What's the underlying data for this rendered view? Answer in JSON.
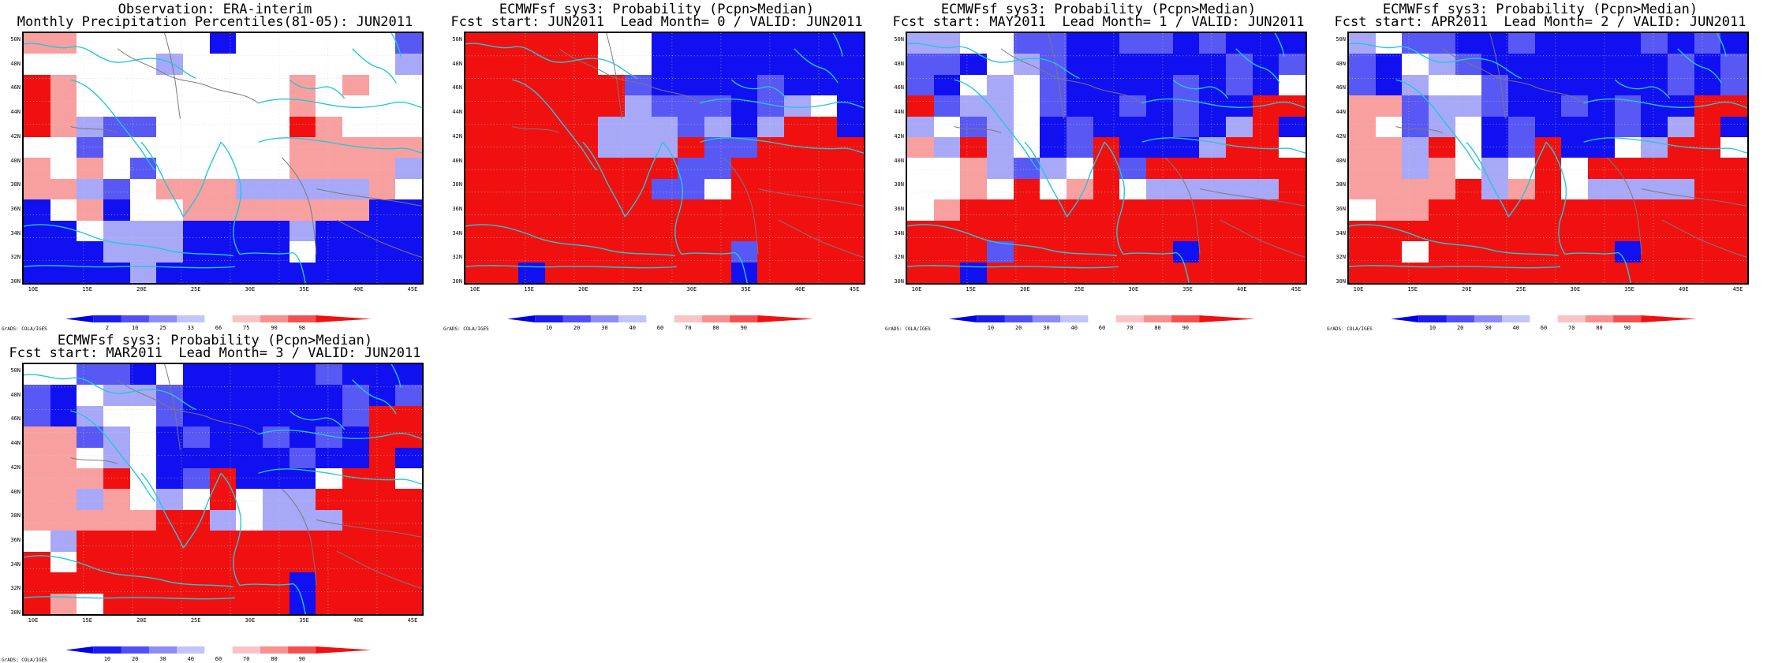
{
  "panels": [
    {
      "title1": "Observation: ERA-interim",
      "title2": "Monthly Precipitation Percentiles(81-05): JUN2011",
      "colorbar_labels": [
        "2",
        "10",
        "25",
        "33",
        "66",
        "75",
        "90",
        "98"
      ],
      "cells": [
        "rrwwwwwBwwwwwwW",
        "wwwwwlwwwwwwwwl",
        "Rrwwwwwwwwrwrww",
        "Rrwwwwwwwwrwwww",
        "RrlWWwwwwwRrwww",
        "wwWwwwwwwwrrrrr",
        "rwrwWwwwwwrrrrl",
        "rrlWwrrrlllllrw",
        "BwrBwwrrrrrrrBB",
        "BBwlllBBBBlBBBB",
        "BBBlllBBBBwBBBB",
        "BBBBlBBBBBBBBBB"
      ]
    },
    {
      "title1": "ECMWFsf sys3: Probability (Pcpn>Median)",
      "title2": "Fcst start: JUN2011  Lead Month= 0 / VALID: JUN2011",
      "colorbar_labels": [
        "10",
        "20",
        "30",
        "40",
        "60",
        "70",
        "80",
        "90"
      ],
      "cells": [
        "RRRRRwwBBBBBBBB",
        "RRRRRwwBBBBBBBB",
        "RRRRRRWBBBBWBBB",
        "RRRRRRlWWWBWlwB",
        "RRRRRlllWlBlRRB",
        "RRRRRlllRWWRRRR",
        "RRRRRRRRWWRRRRR",
        "RRRRRRRWWwRRRRR",
        "RRRRRRRRRRRRRRR",
        "RRRRRRRRRRRRRRR",
        "RRRRRRRRRRWRRRR",
        "RRBRRRRRRRBRRRR"
      ]
    },
    {
      "title1": "ECMWFsf sys3: Probability (Pcpn>Median)",
      "title2": "Fcst start: MAY2011  Lead Month= 1 / VALID: JUN2011",
      "colorbar_labels": [
        "10",
        "20",
        "30",
        "40",
        "60",
        "70",
        "80",
        "90"
      ],
      "cells": [
        "llwwWWBBWWBWBBB",
        "WWBwlWBBBBBBWBW",
        "WBwlwWBBBBWBWBw",
        "RWllwWBBWBWBBRR",
        "lwWlwBWBBBWBlRB",
        "rlRlwBWRBBBlRRw",
        "wwrlWlwRWRRRRRR",
        "wwrwRwrRwlllllR",
        "wrRRRRRRRRRRRRR",
        "RRRRRRRRRRRRRRR",
        "RRRWRRRRRRBRRRR",
        "RRBRRRRRRRRRRRR"
      ]
    },
    {
      "title1": "ECMWFsf sys3: Probability (Pcpn>Median)",
      "title2": "Fcst start: APR2011  Lead Month= 2 / VALID: JUN2011",
      "colorbar_labels": [
        "10",
        "20",
        "30",
        "40",
        "60",
        "70",
        "80",
        "90"
      ],
      "cells": [
        "lwWWBBWBBBBWBWB",
        "WBwlWBBBBBBBWBW",
        "WBlwwWBBBBBBWBW",
        "rrWllWBBWBWBBRR",
        "rwWlwBWBBBWBlRB",
        "rrlRwBWRBBwlRRw",
        "rrlrwlwRwRRRRRR",
        "rrrrRlrRwllllRR",
        "wrrRRRRRRRRRRRR",
        "RRRRRRRRRRRRRRR",
        "RRwRRRRRRRBRRRR",
        "RRRRRRRRRRRRRRR"
      ]
    },
    {
      "title1": "ECMWFsf sys3: Probability (Pcpn>Median)",
      "title2": "Fcst start: MAR2011  Lead Month= 3 / VALID: JUN2011",
      "colorbar_labels": [
        "10",
        "20",
        "30",
        "40",
        "60",
        "70",
        "80",
        "90"
      ],
      "cells": [
        "wwWWBwBBBBBWBBB",
        "WBwllWBBBBBBWBW",
        "WBlwwWBBBBBBWRR",
        "rrWlwBWBBWBWBRR",
        "rrwlwBBBBBWBBRB",
        "rrrRwBWRBBBwRRw",
        "rrlrwlwRwllRRRR",
        "rrrrrRRlwlllRRR",
        "wlRRRRRRRRRRRRR",
        "RwRRRRRRRRRRRRR",
        "RRRRRRRRRRBRRRR",
        "RrwRRRRRRRBRRRR"
      ]
    }
  ],
  "lat_labels": [
    "50N",
    "48N",
    "46N",
    "44N",
    "42N",
    "40N",
    "38N",
    "36N",
    "34N",
    "32N",
    "30N"
  ],
  "lon_labels": [
    "10E",
    "15E",
    "20E",
    "25E",
    "30E",
    "35E",
    "40E",
    "45E"
  ],
  "credit": "GrADS: COLA/IGES",
  "colors": {
    "B": "#1010f0",
    "W": "#5858f4",
    "l": "#a8a8f8",
    "w": "#ffffff",
    "r": "#f8a0a0",
    "R": "#f01010",
    "coast": "#22c8d8",
    "border": "#7a7a7a"
  }
}
